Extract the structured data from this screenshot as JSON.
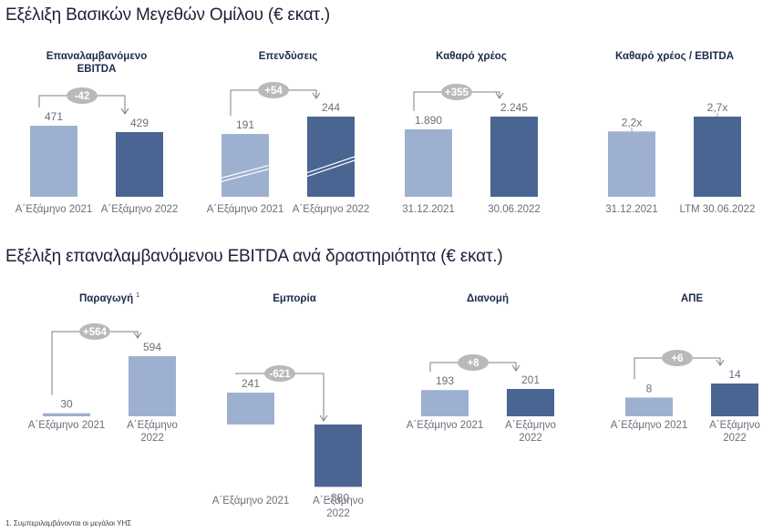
{
  "section1_title": "Εξέλιξη Βασικών Μεγεθών Ομίλου (€ εκατ.)",
  "section2_title": "Εξέλιξη επαναλαμβανόμενου EBITDA ανά δραστηριότητα  (€ εκατ.)",
  "footnote": "1. Συμπεριλαμβάνονται οι μεγάλοι ΥΗΣ",
  "colors": {
    "light_bar": "#9eb0cf",
    "dark_bar": "#4a6592",
    "bubble": "#b9b9b9",
    "connector": "#7a7f88"
  },
  "chart_data": [
    {
      "type": "bar",
      "title": "Επαναλαμβανόμενο EBITDA",
      "categories": [
        "Α΄Εξάμηνο 2021",
        "Α΄Εξάμηνο 2022"
      ],
      "values": [
        471,
        429
      ],
      "value_labels": [
        "471",
        "429"
      ],
      "change_label": "-42"
    },
    {
      "type": "bar",
      "title": "Επενδύσεις",
      "categories": [
        "Α΄Εξάμηνο 2021",
        "Α΄Εξάμηνο 2022"
      ],
      "values": [
        191,
        244
      ],
      "value_labels": [
        "191",
        "244"
      ],
      "change_label": "+54"
    },
    {
      "type": "bar",
      "title": "Καθαρό χρέος",
      "categories": [
        "31.12.2021",
        "30.06.2022"
      ],
      "values": [
        1890,
        2245
      ],
      "value_labels": [
        "1.890",
        "2.245"
      ],
      "change_label": "+355"
    },
    {
      "type": "bar",
      "title": "Καθαρό χρέος / EBITDA",
      "categories": [
        "31.12.2021",
        "LTM 30.06.2022"
      ],
      "values": [
        2.2,
        2.7
      ],
      "value_labels": [
        "2,2x",
        "2,7x"
      ],
      "change_label": ""
    },
    {
      "type": "bar",
      "title": "Παραγωγή",
      "title_note": "1",
      "categories": [
        "Α΄Εξάμηνο 2021",
        "Α΄Εξάμηνο 2022"
      ],
      "values": [
        30,
        594
      ],
      "value_labels": [
        "30",
        "594"
      ],
      "change_label": "+564"
    },
    {
      "type": "bar",
      "title": "Εμπορία",
      "categories": [
        "Α΄Εξάμηνο 2021",
        "Α΄Εξάμηνο 2022"
      ],
      "values": [
        241,
        -380
      ],
      "value_labels": [
        "241",
        "-380"
      ],
      "change_label": "-621"
    },
    {
      "type": "bar",
      "title": "Διανομή",
      "categories": [
        "Α΄Εξάμηνο 2021",
        "Α΄Εξάμηνο 2022"
      ],
      "values": [
        193,
        201
      ],
      "value_labels": [
        "193",
        "201"
      ],
      "change_label": "+8"
    },
    {
      "type": "bar",
      "title": "ΑΠΕ",
      "categories": [
        "Α΄Εξάμηνο 2021",
        "Α΄Εξάμηνο 2022"
      ],
      "values": [
        8,
        14
      ],
      "value_labels": [
        "8",
        "14"
      ],
      "change_label": "+6"
    }
  ]
}
